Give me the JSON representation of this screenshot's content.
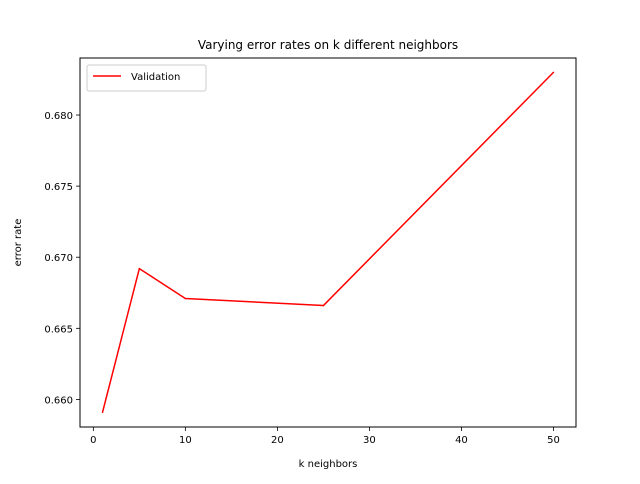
{
  "chart_data": {
    "type": "line",
    "title": "Varying error rates on k different neighbors",
    "xlabel": "k neighbors",
    "ylabel": "error rate",
    "xlim": [
      -1.45,
      52.45
    ],
    "ylim": [
      0.65806,
      0.68401
    ],
    "x_ticks": [
      0,
      10,
      20,
      30,
      40,
      50
    ],
    "y_ticks": [
      0.66,
      0.665,
      0.67,
      0.675,
      0.68
    ],
    "x_tick_labels": [
      "0",
      "10",
      "20",
      "30",
      "40",
      "50"
    ],
    "y_tick_labels": [
      "0.660",
      "0.665",
      "0.670",
      "0.675",
      "0.680"
    ],
    "grid": false,
    "legend_position": "upper-left",
    "series": [
      {
        "name": "Validation",
        "color": "#ff0000",
        "x": [
          1,
          5,
          10,
          25,
          50
        ],
        "y": [
          0.6591,
          0.6692,
          0.6671,
          0.6666,
          0.683
        ]
      }
    ]
  }
}
